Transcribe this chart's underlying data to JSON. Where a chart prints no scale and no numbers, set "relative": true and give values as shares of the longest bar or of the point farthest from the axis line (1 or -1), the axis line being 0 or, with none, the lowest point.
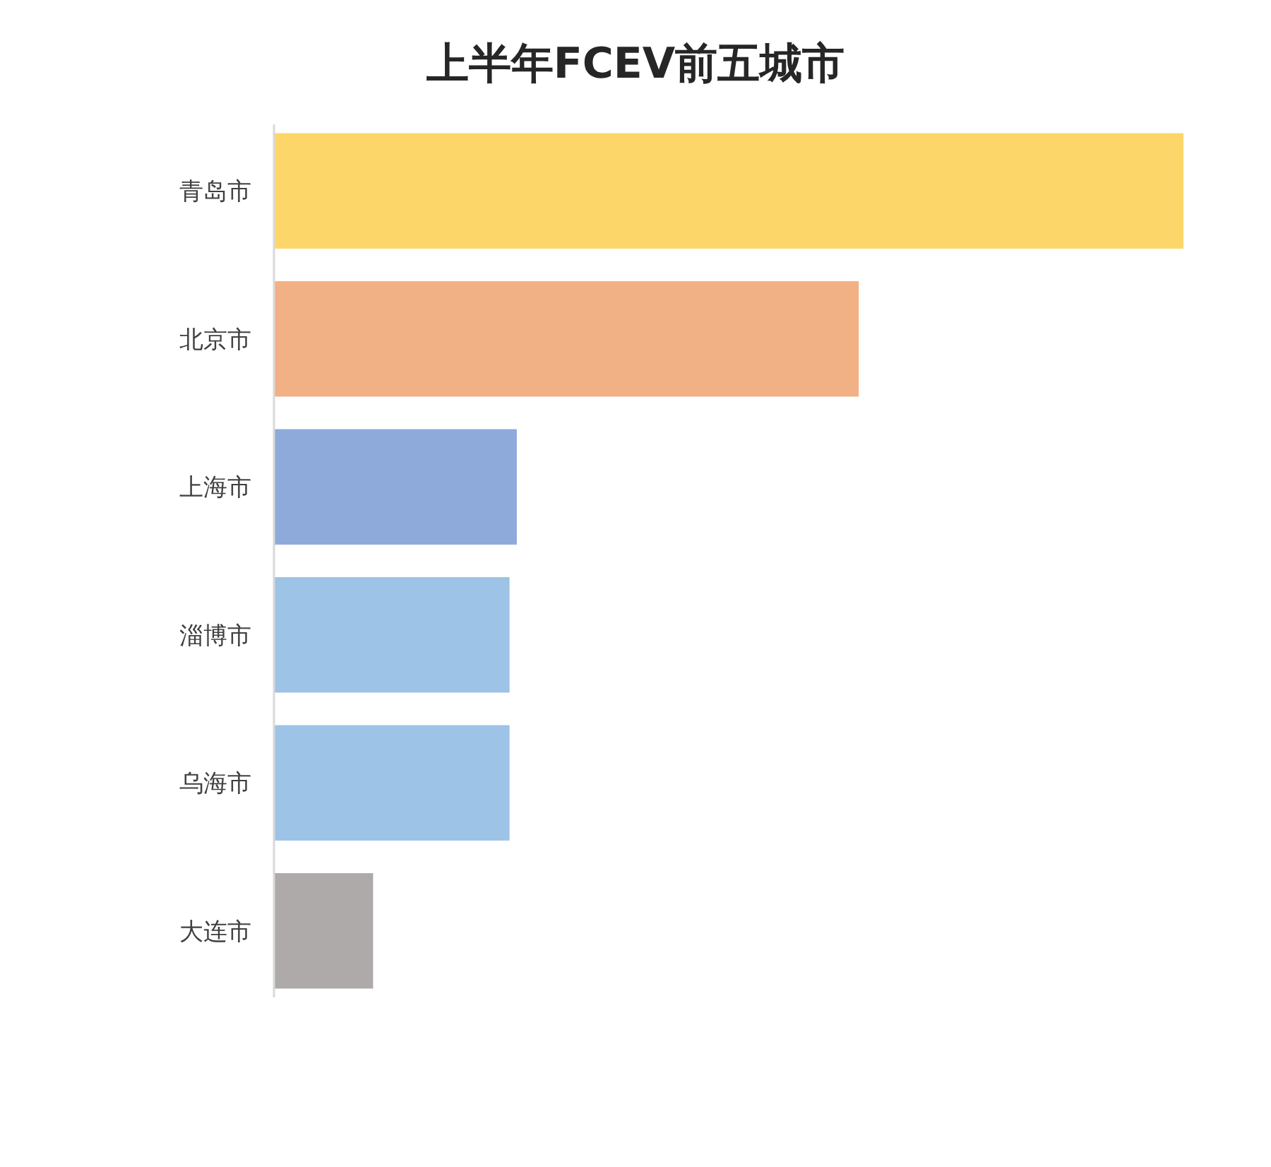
{
  "chart_data": {
    "type": "bar",
    "title": "上半年FCEV前五城市",
    "orientation": "horizontal",
    "relative": true,
    "categories": [
      "青岛市",
      "北京市",
      "上海市",
      "淄博市",
      "乌海市",
      "大连市"
    ],
    "values": [
      1,
      0.643,
      0.267,
      0.259,
      0.259,
      0.109
    ],
    "colors": [
      "#fcd669",
      "#f2b085",
      "#8eaadb",
      "#9dc3e6",
      "#9dc3e6",
      "#aeaaaa"
    ]
  }
}
